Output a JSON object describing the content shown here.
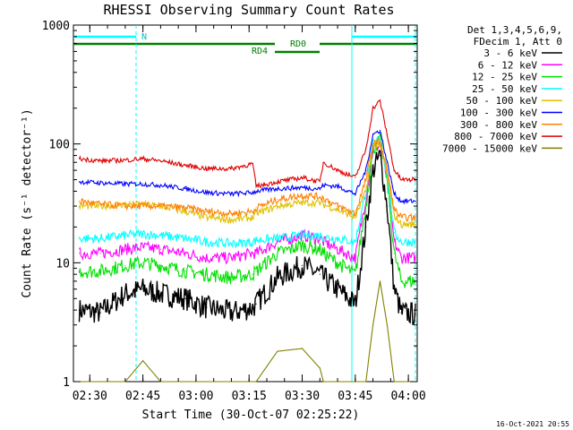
{
  "chart_data": {
    "type": "line",
    "title": "RHESSI Observing Summary Count Rates",
    "xlabel": "Start Time (30-Oct-07 02:25:22)",
    "ylabel": "Count Rate (s⁻¹ detector⁻¹)",
    "y_scale": "log",
    "ylim": [
      1,
      1000
    ],
    "xlim": [
      "02:25:22",
      "04:02:30"
    ],
    "x_ticks": [
      "02:30",
      "02:45",
      "03:00",
      "03:15",
      "03:30",
      "03:45",
      "04:00"
    ],
    "y_ticks": [
      {
        "value": 1,
        "label": "1"
      },
      {
        "value": 10,
        "label": "10"
      },
      {
        "value": 100,
        "label": "100"
      },
      {
        "value": 1000,
        "label": "1000"
      }
    ],
    "grid": false,
    "legend_position": "right",
    "legend_header": [
      "Det 1,3,4,5,6,9,",
      "FDecim 1, Att 0"
    ],
    "footer_date": "16-Oct-2021 20:55",
    "annotations": {
      "N": "N",
      "RD0": "RD0",
      "RD4": "RD4"
    },
    "x": [
      "02:27",
      "02:33",
      "02:40",
      "02:45",
      "02:50",
      "02:57",
      "03:03",
      "03:10",
      "03:16",
      "03:17",
      "03:23",
      "03:30",
      "03:35",
      "03:36",
      "03:40",
      "03:45",
      "03:48",
      "03:50",
      "03:52",
      "03:54",
      "03:56",
      "03:58",
      "04:02"
    ],
    "series": [
      {
        "name": "3 - 6 keV",
        "color": "#000000",
        "values": [
          4.0,
          3.8,
          5.5,
          6.0,
          5.5,
          5.0,
          4.2,
          3.8,
          4.2,
          4.5,
          7.5,
          9.5,
          8.0,
          7.5,
          6.0,
          4.5,
          20,
          60,
          80,
          30,
          6,
          3.8,
          3.7
        ]
      },
      {
        "name": "6 - 12 keV",
        "color": "#ff00ff",
        "values": [
          12,
          12,
          13,
          13.5,
          13,
          12,
          11,
          11,
          12,
          12,
          15,
          17,
          16,
          15,
          13,
          11,
          35,
          90,
          100,
          50,
          15,
          11,
          11
        ]
      },
      {
        "name": "12 - 25 keV",
        "color": "#00e000",
        "values": [
          8.5,
          8.5,
          9.5,
          10,
          9.5,
          8.5,
          8,
          7.5,
          8,
          8.5,
          12,
          14,
          13,
          12,
          10,
          8,
          30,
          90,
          110,
          50,
          12,
          7,
          7
        ]
      },
      {
        "name": "25 - 50 keV",
        "color": "#00ffff",
        "values": [
          16,
          16,
          17,
          17.5,
          17,
          16,
          15,
          14.5,
          15,
          15.5,
          16,
          17,
          17,
          16.5,
          16,
          15,
          40,
          100,
          110,
          55,
          18,
          15,
          15
        ]
      },
      {
        "name": "50 - 100 keV",
        "color": "#e0c000",
        "values": [
          30,
          30,
          31,
          31,
          30,
          27,
          24,
          23,
          24,
          26,
          30,
          32,
          32,
          31,
          28,
          24,
          40,
          95,
          100,
          55,
          25,
          21,
          21
        ]
      },
      {
        "name": "100 - 300 keV",
        "color": "#0000ff",
        "values": [
          48,
          47,
          46,
          46,
          45,
          42,
          39,
          38,
          39,
          40,
          42,
          43,
          42,
          45,
          44,
          38,
          60,
          120,
          130,
          70,
          38,
          33,
          33
        ]
      },
      {
        "name": "300 - 800 keV",
        "color": "#ff8000",
        "values": [
          33,
          31,
          30,
          30,
          30,
          29,
          27,
          26,
          27,
          29,
          34,
          37,
          36,
          35,
          30,
          26,
          50,
          100,
          105,
          60,
          28,
          24,
          24
        ]
      },
      {
        "name": "800 - 7000 keV",
        "color": "#e00000",
        "values": [
          75,
          72,
          73,
          75,
          72,
          66,
          62,
          62,
          68,
          44,
          48,
          52,
          48,
          70,
          60,
          52,
          90,
          200,
          230,
          120,
          60,
          50,
          50
        ]
      },
      {
        "name": "7000 - 15000 keV",
        "color": "#808000",
        "values": [
          1,
          1,
          1,
          1.5,
          1,
          1,
          1,
          1,
          1,
          1,
          1.8,
          1.9,
          1.3,
          1,
          1,
          1,
          1,
          3,
          7,
          3,
          1,
          1,
          1
        ]
      }
    ]
  }
}
